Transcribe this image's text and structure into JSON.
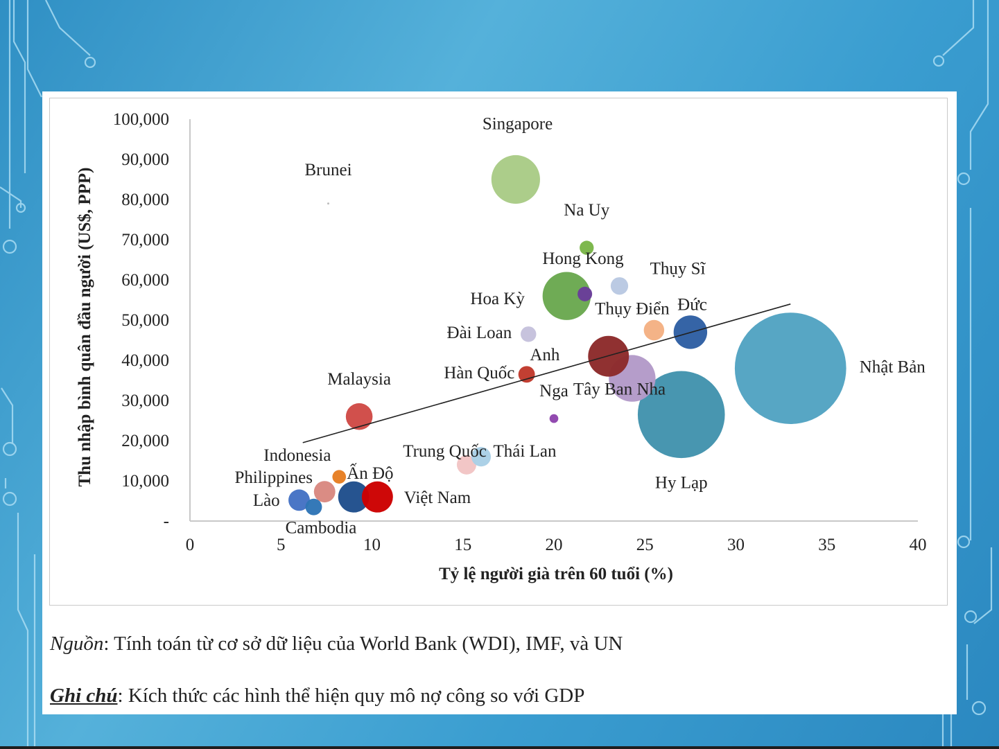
{
  "chart_data": {
    "type": "scatter",
    "xlabel": "Tỷ lệ người già trên 60 tuổi (%)",
    "ylabel": "Thu nhập bình quân đầu người (US$, PPP)",
    "xlim": [
      0,
      40
    ],
    "ylim": [
      0,
      100000
    ],
    "x_ticks": [
      0,
      5,
      10,
      15,
      20,
      25,
      30,
      35,
      40
    ],
    "y_ticks": [
      0,
      10000,
      20000,
      30000,
      40000,
      50000,
      60000,
      70000,
      80000,
      90000,
      100000
    ],
    "y_tick_labels": [
      "-",
      "10,000",
      "20,000",
      "30,000",
      "40,000",
      "50,000",
      "60,000",
      "70,000",
      "80,000",
      "90,000",
      "100,000"
    ],
    "grid": false,
    "legend": "none",
    "bubble_size_meaning": "Kích thức các hình thể hiện quy mô nợ công so với GDP",
    "trendline": {
      "x": [
        6.2,
        33
      ],
      "y": [
        19500,
        54000
      ]
    },
    "points": [
      {
        "label": "Singapore",
        "x": 17.9,
        "y": 85000,
        "size": 100,
        "color": "#a9cb86"
      },
      {
        "label": "Brunei",
        "x": 7.6,
        "y": 79000,
        "size": 0,
        "color": "#bbbbbb"
      },
      {
        "label": "Na Uy",
        "x": 21.8,
        "y": 68000,
        "size": 29,
        "color": "#7ab648"
      },
      {
        "label": "Hong Kong",
        "x": 21.7,
        "y": 56500,
        "size": 30,
        "color": "#6a3d9a"
      },
      {
        "label": "Thụy Sĩ",
        "x": 23.6,
        "y": 58500,
        "size": 36,
        "color": "#b9c8e2"
      },
      {
        "label": "Hoa Kỳ",
        "x": 20.7,
        "y": 56000,
        "size": 99,
        "color": "#6aa84f"
      },
      {
        "label": "Thụy Điển",
        "x": 25.5,
        "y": 47500,
        "size": 42,
        "color": "#f4b183"
      },
      {
        "label": "Đức",
        "x": 27.5,
        "y": 47000,
        "size": 69,
        "color": "#2e5fa3"
      },
      {
        "label": "Đài Loan",
        "x": 18.6,
        "y": 46500,
        "size": 32,
        "color": "#c5c1dc"
      },
      {
        "label": "Anh",
        "x": 23,
        "y": 41000,
        "size": 84,
        "color": "#8c2a2a"
      },
      {
        "label": "Hàn Quốc",
        "x": 18.5,
        "y": 36500,
        "size": 34,
        "color": "#c0392b"
      },
      {
        "label": "Nga",
        "x": 20,
        "y": 25500,
        "size": 18,
        "color": "#8e44ad"
      },
      {
        "label": "Tây Ban Nha",
        "x": 24.3,
        "y": 35500,
        "size": 96,
        "color": "#b39ac8"
      },
      {
        "label": "Nhật Bản",
        "x": 33,
        "y": 38000,
        "size": 229,
        "color": "#4a9fc0"
      },
      {
        "label": "Hy Lạp",
        "x": 27,
        "y": 26500,
        "size": 179,
        "color": "#3a8eaa"
      },
      {
        "label": "Malaysia",
        "x": 9.3,
        "y": 26000,
        "size": 55,
        "color": "#d04a46"
      },
      {
        "label": "Trung Quốc",
        "x": 15.2,
        "y": 14000,
        "size": 40,
        "color": "#f2c4c4"
      },
      {
        "label": "Thái Lan",
        "x": 16,
        "y": 16000,
        "size": 40,
        "color": "#a9d0e6"
      },
      {
        "label": "Indonesia",
        "x": 8.2,
        "y": 11000,
        "size": 28,
        "color": "#e67e22"
      },
      {
        "label": "Ấn Độ",
        "x": 9,
        "y": 6000,
        "size": 64,
        "color": "#1f4e8c"
      },
      {
        "label": "Philippines",
        "x": 7.4,
        "y": 7300,
        "size": 44,
        "color": "#d98880"
      },
      {
        "label": "Việt Nam",
        "x": 10.3,
        "y": 6000,
        "size": 64,
        "color": "#cc0000"
      },
      {
        "label": "Lào",
        "x": 6,
        "y": 5200,
        "size": 44,
        "color": "#4472c4"
      },
      {
        "label": "Cambodia",
        "x": 6.8,
        "y": 3500,
        "size": 34,
        "color": "#2e75b6"
      }
    ],
    "labels": [
      {
        "text": "Singapore",
        "x": 18,
        "y": 97500
      },
      {
        "text": "Brunei",
        "x": 7.6,
        "y": 86000
      },
      {
        "text": "Na Uy",
        "x": 21.8,
        "y": 76000
      },
      {
        "text": "Hong Kong",
        "x": 21.6,
        "y": 64000
      },
      {
        "text": "Thụy Sĩ",
        "x": 26.8,
        "y": 61500
      },
      {
        "text": "Hoa Kỳ",
        "x": 16.9,
        "y": 54000
      },
      {
        "text": "Thụy Điển",
        "x": 24.3,
        "y": 51500
      },
      {
        "text": "Đức",
        "x": 27.6,
        "y": 52500
      },
      {
        "text": "Đài Loan",
        "x": 15.9,
        "y": 45500
      },
      {
        "text": "Anh",
        "x": 19.5,
        "y": 40000
      },
      {
        "text": "Hàn Quốc",
        "x": 15.9,
        "y": 35500
      },
      {
        "text": "Nga",
        "x": 20,
        "y": 31000
      },
      {
        "text": "Tây Ban Nha",
        "x": 23.6,
        "y": 31500
      },
      {
        "text": "Nhật Bản",
        "x": 38.6,
        "y": 37000
      },
      {
        "text": "Hy Lạp",
        "x": 27,
        "y": 8200
      },
      {
        "text": "Malaysia",
        "x": 9.3,
        "y": 34000
      },
      {
        "text": "Trung Quốc",
        "x": 14,
        "y": 16000
      },
      {
        "text": "Thái Lan",
        "x": 18.4,
        "y": 16000
      },
      {
        "text": "Indonesia",
        "x": 5.9,
        "y": 15000
      },
      {
        "text": "Ấn Độ",
        "x": 9.9,
        "y": 10500
      },
      {
        "text": "Philippines",
        "x": 4.6,
        "y": 9500
      },
      {
        "text": "Việt Nam",
        "x": 13.6,
        "y": 4500
      },
      {
        "text": "Lào",
        "x": 4.2,
        "y": 3800
      },
      {
        "text": "Cambodia",
        "x": 7.2,
        "y": -3000
      }
    ]
  },
  "notes": {
    "source_label": "Nguồn",
    "source_text": ": Tính toán từ cơ sở dữ liệu của World Bank (WDI), IMF, và UN",
    "remark_label": "Ghi chú",
    "remark_text": ": Kích thức các hình thể hiện quy mô nợ công so với GDP"
  },
  "colors": {
    "background": "#4aa6d6",
    "circuit_lines": "#a9dcf3",
    "panel": "#ffffff",
    "axis": "#c8c8c8"
  }
}
